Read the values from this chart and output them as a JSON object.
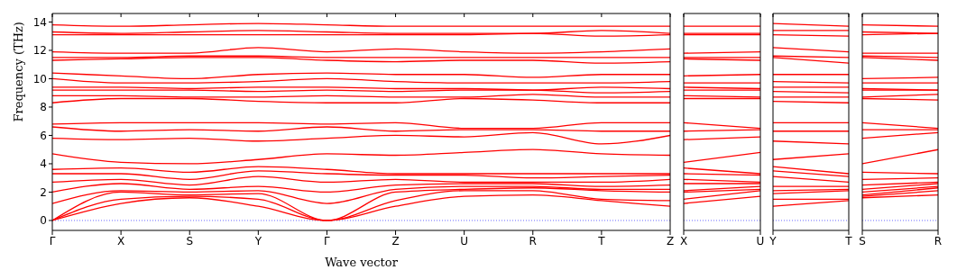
{
  "chart_data": [
    {
      "type": "line",
      "ylabel": "Frequency (THz)",
      "xlabel": "Wave vector",
      "color": "#ff0000",
      "categories": [
        "Γ",
        "X",
        "S",
        "Y",
        "Γ",
        "Z",
        "U",
        "R",
        "T",
        "Z"
      ],
      "ylim": [
        -0.7,
        14.6
      ],
      "yticks": [
        0,
        2,
        4,
        6,
        8,
        10,
        12,
        14
      ],
      "ref_lines": [
        {
          "axis": "y",
          "value": 0,
          "color": "#0000ff",
          "line_style": "dotted"
        }
      ],
      "series": [
        {
          "values": [
            0,
            1.2,
            1.6,
            1.0,
            0,
            1.0,
            1.7,
            1.8,
            1.4,
            1.0
          ]
        },
        {
          "values": [
            0,
            1.5,
            1.7,
            1.5,
            0,
            1.4,
            2.1,
            2.1,
            1.5,
            1.4
          ]
        },
        {
          "values": [
            0,
            2.0,
            1.8,
            1.9,
            0,
            2.0,
            2.2,
            2.3,
            2.1,
            2.0
          ]
        },
        {
          "values": [
            1.2,
            2.1,
            2.0,
            2.1,
            1.2,
            2.2,
            2.4,
            2.4,
            2.2,
            2.2
          ]
        },
        {
          "values": [
            2.0,
            2.6,
            2.2,
            2.4,
            2.0,
            2.5,
            2.6,
            2.6,
            2.4,
            2.5
          ]
        },
        {
          "values": [
            2.7,
            2.9,
            2.5,
            3.1,
            2.7,
            2.9,
            2.7,
            2.7,
            2.7,
            2.9
          ]
        },
        {
          "values": [
            3.3,
            3.3,
            2.9,
            3.5,
            3.3,
            3.2,
            3.2,
            3.0,
            3.1,
            3.2
          ]
        },
        {
          "values": [
            3.6,
            3.7,
            3.4,
            3.8,
            3.6,
            3.3,
            3.3,
            3.3,
            3.3,
            3.3
          ]
        },
        {
          "values": [
            4.7,
            4.1,
            4.0,
            4.3,
            4.7,
            4.6,
            4.8,
            5.0,
            4.7,
            4.6
          ]
        },
        {
          "values": [
            5.8,
            5.7,
            5.8,
            5.6,
            5.8,
            6.0,
            5.9,
            6.2,
            5.4,
            6.0
          ]
        },
        {
          "values": [
            6.6,
            6.3,
            6.4,
            6.3,
            6.6,
            6.3,
            6.4,
            6.4,
            6.3,
            6.3
          ]
        },
        {
          "values": [
            6.8,
            6.9,
            6.9,
            6.9,
            6.8,
            6.9,
            6.5,
            6.5,
            6.9,
            6.9
          ]
        },
        {
          "values": [
            8.3,
            8.6,
            8.6,
            8.4,
            8.3,
            8.3,
            8.6,
            8.5,
            8.3,
            8.3
          ]
        },
        {
          "values": [
            8.8,
            8.8,
            8.7,
            8.7,
            8.8,
            8.7,
            8.7,
            8.9,
            8.7,
            8.7
          ]
        },
        {
          "values": [
            9.2,
            9.2,
            9.2,
            9.1,
            9.2,
            9.1,
            9.2,
            9.2,
            9.0,
            9.1
          ]
        },
        {
          "values": [
            9.4,
            9.4,
            9.3,
            9.4,
            9.4,
            9.3,
            9.3,
            9.2,
            9.4,
            9.3
          ]
        },
        {
          "values": [
            10.0,
            9.7,
            9.7,
            9.8,
            10.0,
            9.8,
            9.7,
            9.7,
            9.7,
            9.8
          ]
        },
        {
          "values": [
            10.4,
            10.2,
            10.0,
            10.3,
            10.4,
            10.3,
            10.3,
            10.1,
            10.3,
            10.3
          ]
        },
        {
          "values": [
            11.3,
            11.4,
            11.5,
            11.5,
            11.3,
            11.2,
            11.3,
            11.3,
            11.1,
            11.2
          ]
        },
        {
          "values": [
            11.5,
            11.5,
            11.6,
            11.6,
            11.5,
            11.5,
            11.5,
            11.5,
            11.5,
            11.5
          ]
        },
        {
          "values": [
            11.9,
            11.8,
            11.8,
            12.2,
            11.9,
            12.1,
            11.9,
            11.8,
            11.9,
            12.1
          ]
        },
        {
          "values": [
            13.1,
            13.1,
            13.1,
            13.1,
            13.1,
            13.1,
            13.1,
            13.2,
            13.0,
            13.1
          ]
        },
        {
          "values": [
            13.3,
            13.2,
            13.3,
            13.4,
            13.3,
            13.2,
            13.2,
            13.2,
            13.4,
            13.2
          ]
        },
        {
          "values": [
            13.8,
            13.7,
            13.8,
            13.9,
            13.8,
            13.7,
            13.7,
            13.7,
            13.7,
            13.7
          ]
        }
      ]
    },
    {
      "type": "line",
      "color": "#ff0000",
      "categories": [
        "X",
        "U"
      ],
      "ylim": [
        -0.7,
        14.6
      ],
      "tick_labels": "x",
      "ref_lines": [
        {
          "axis": "y",
          "value": 0,
          "color": "#0000ff",
          "line_style": "dotted"
        }
      ],
      "series": [
        {
          "values": [
            1.2,
            1.7
          ]
        },
        {
          "values": [
            1.5,
            2.1
          ]
        },
        {
          "values": [
            2.0,
            2.2
          ]
        },
        {
          "values": [
            2.1,
            2.4
          ]
        },
        {
          "values": [
            2.6,
            2.6
          ]
        },
        {
          "values": [
            2.9,
            2.7
          ]
        },
        {
          "values": [
            3.3,
            3.2
          ]
        },
        {
          "values": [
            3.7,
            3.3
          ]
        },
        {
          "values": [
            4.1,
            4.8
          ]
        },
        {
          "values": [
            5.7,
            5.9
          ]
        },
        {
          "values": [
            6.3,
            6.4
          ]
        },
        {
          "values": [
            6.9,
            6.5
          ]
        },
        {
          "values": [
            8.6,
            8.6
          ]
        },
        {
          "values": [
            8.8,
            8.7
          ]
        },
        {
          "values": [
            9.2,
            9.2
          ]
        },
        {
          "values": [
            9.4,
            9.3
          ]
        },
        {
          "values": [
            9.7,
            9.7
          ]
        },
        {
          "values": [
            10.2,
            10.3
          ]
        },
        {
          "values": [
            11.4,
            11.3
          ]
        },
        {
          "values": [
            11.5,
            11.5
          ]
        },
        {
          "values": [
            11.8,
            11.9
          ]
        },
        {
          "values": [
            13.1,
            13.1
          ]
        },
        {
          "values": [
            13.2,
            13.2
          ]
        },
        {
          "values": [
            13.7,
            13.7
          ]
        }
      ]
    },
    {
      "type": "line",
      "color": "#ff0000",
      "categories": [
        "Y",
        "T"
      ],
      "ylim": [
        -0.7,
        14.6
      ],
      "tick_labels": "x",
      "ref_lines": [
        {
          "axis": "y",
          "value": 0,
          "color": "#0000ff",
          "line_style": "dotted"
        }
      ],
      "series": [
        {
          "values": [
            1.0,
            1.4
          ]
        },
        {
          "values": [
            1.5,
            1.5
          ]
        },
        {
          "values": [
            1.9,
            2.1
          ]
        },
        {
          "values": [
            2.1,
            2.2
          ]
        },
        {
          "values": [
            2.4,
            2.4
          ]
        },
        {
          "values": [
            3.1,
            2.7
          ]
        },
        {
          "values": [
            3.5,
            3.1
          ]
        },
        {
          "values": [
            3.8,
            3.3
          ]
        },
        {
          "values": [
            4.3,
            4.7
          ]
        },
        {
          "values": [
            5.6,
            5.4
          ]
        },
        {
          "values": [
            6.3,
            6.3
          ]
        },
        {
          "values": [
            6.9,
            6.9
          ]
        },
        {
          "values": [
            8.4,
            8.3
          ]
        },
        {
          "values": [
            8.7,
            8.7
          ]
        },
        {
          "values": [
            9.1,
            9.0
          ]
        },
        {
          "values": [
            9.4,
            9.4
          ]
        },
        {
          "values": [
            9.8,
            9.7
          ]
        },
        {
          "values": [
            10.3,
            10.3
          ]
        },
        {
          "values": [
            11.5,
            11.1
          ]
        },
        {
          "values": [
            11.6,
            11.5
          ]
        },
        {
          "values": [
            12.2,
            11.9
          ]
        },
        {
          "values": [
            13.1,
            13.0
          ]
        },
        {
          "values": [
            13.4,
            13.4
          ]
        },
        {
          "values": [
            13.9,
            13.7
          ]
        }
      ]
    },
    {
      "type": "line",
      "color": "#ff0000",
      "categories": [
        "S",
        "R"
      ],
      "ylim": [
        -0.7,
        14.6
      ],
      "tick_labels": "x",
      "ref_lines": [
        {
          "axis": "y",
          "value": 0,
          "color": "#0000ff",
          "line_style": "dotted"
        }
      ],
      "series": [
        {
          "values": [
            1.6,
            1.8
          ]
        },
        {
          "values": [
            1.7,
            2.1
          ]
        },
        {
          "values": [
            1.8,
            2.3
          ]
        },
        {
          "values": [
            2.0,
            2.4
          ]
        },
        {
          "values": [
            2.2,
            2.6
          ]
        },
        {
          "values": [
            2.5,
            2.7
          ]
        },
        {
          "values": [
            2.9,
            3.0
          ]
        },
        {
          "values": [
            3.4,
            3.3
          ]
        },
        {
          "values": [
            4.0,
            5.0
          ]
        },
        {
          "values": [
            5.8,
            6.2
          ]
        },
        {
          "values": [
            6.4,
            6.4
          ]
        },
        {
          "values": [
            6.9,
            6.5
          ]
        },
        {
          "values": [
            8.6,
            8.5
          ]
        },
        {
          "values": [
            8.7,
            8.9
          ]
        },
        {
          "values": [
            9.2,
            9.2
          ]
        },
        {
          "values": [
            9.3,
            9.2
          ]
        },
        {
          "values": [
            9.7,
            9.7
          ]
        },
        {
          "values": [
            10.0,
            10.1
          ]
        },
        {
          "values": [
            11.5,
            11.3
          ]
        },
        {
          "values": [
            11.6,
            11.5
          ]
        },
        {
          "values": [
            11.8,
            11.8
          ]
        },
        {
          "values": [
            13.1,
            13.2
          ]
        },
        {
          "values": [
            13.3,
            13.2
          ]
        },
        {
          "values": [
            13.8,
            13.7
          ]
        }
      ]
    }
  ]
}
